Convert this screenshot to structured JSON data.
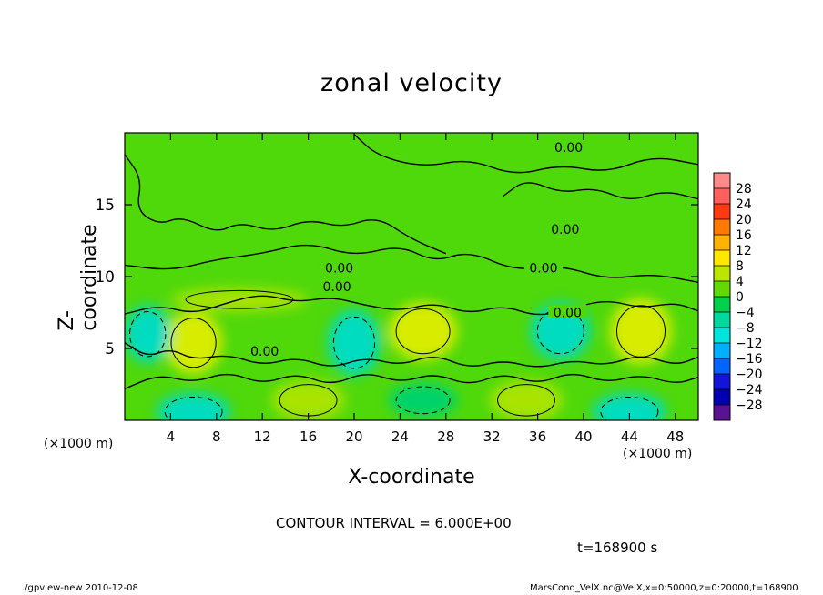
{
  "chart_data": {
    "type": "heatmap",
    "title": "zonal velocity",
    "xlabel": "X-coordinate",
    "ylabel": "Z-coordinate",
    "x_unit_left": "(×1000 m)",
    "x_unit_right": "(×1000 m)",
    "xlim": [
      0,
      50
    ],
    "ylim": [
      0,
      20
    ],
    "x_ticks": [
      "4",
      "8",
      "12",
      "16",
      "20",
      "24",
      "28",
      "32",
      "36",
      "40",
      "44",
      "48"
    ],
    "y_ticks": [
      "5",
      "10",
      "15"
    ],
    "colorbar_levels": [
      "28",
      "24",
      "20",
      "16",
      "12",
      "8",
      "4",
      "0",
      "−4",
      "−8",
      "−12",
      "−16",
      "−20",
      "−24",
      "−28"
    ],
    "colorbar_colors": [
      "#ff8a8a",
      "#ff5f5f",
      "#ff3a10",
      "#ff7a00",
      "#ffb300",
      "#ffe800",
      "#bce600",
      "#64d800",
      "#00d04a",
      "#00d8a0",
      "#00e4dc",
      "#00b0ff",
      "#0064ff",
      "#1414d8",
      "#0000b0",
      "#5a1290"
    ],
    "contour_labels": [
      {
        "text": "0.00",
        "x": 38.7,
        "y": 19.0
      },
      {
        "text": "0.00",
        "x": 38.4,
        "y": 13.3
      },
      {
        "text": "0.00",
        "x": 36.5,
        "y": 10.6
      },
      {
        "text": "0.00",
        "x": 18.7,
        "y": 10.6
      },
      {
        "text": "0.00",
        "x": 18.5,
        "y": 9.3
      },
      {
        "text": "0.00",
        "x": 38.6,
        "y": 7.5
      },
      {
        "text": "0.00",
        "x": 12.2,
        "y": 4.8
      }
    ],
    "velocity_cells": [
      {
        "x": 6,
        "z": 5.4,
        "v": 9,
        "rx": 2.5,
        "rz": 2.2
      },
      {
        "x": 26,
        "z": 6.2,
        "v": 9,
        "rx": 3.0,
        "rz": 2.0
      },
      {
        "x": 45,
        "z": 6.2,
        "v": 9,
        "rx": 2.7,
        "rz": 2.3
      },
      {
        "x": 2,
        "z": 6.0,
        "v": -5,
        "rx": 2.0,
        "rz": 2.0
      },
      {
        "x": 20,
        "z": 5.4,
        "v": -5,
        "rx": 2.3,
        "rz": 2.3
      },
      {
        "x": 38,
        "z": 6.2,
        "v": -6,
        "rx": 2.6,
        "rz": 2.0
      },
      {
        "x": 6,
        "z": 0.6,
        "v": -7,
        "rx": 3.2,
        "rz": 1.3
      },
      {
        "x": 44,
        "z": 0.6,
        "v": -7,
        "rx": 3.2,
        "rz": 1.3
      },
      {
        "x": 26,
        "z": 1.4,
        "v": -4,
        "rx": 3.0,
        "rz": 1.2
      },
      {
        "x": 16,
        "z": 1.4,
        "v": 4,
        "rx": 3.2,
        "rz": 1.4
      },
      {
        "x": 35,
        "z": 1.4,
        "v": 5,
        "rx": 3.2,
        "rz": 1.4
      },
      {
        "x": 10,
        "z": 8.4,
        "v": 4,
        "rx": 6.0,
        "rz": 0.8
      }
    ],
    "grid": false
  },
  "annotations": {
    "contour_interval": "CONTOUR INTERVAL = 6.000E+00",
    "time": "t=168900 s",
    "footer_left": "./gpview-new  2010-12-08",
    "footer_right": "MarsCond_VelX.nc@VelX,x=0:50000,z=0:20000,t=168900"
  }
}
